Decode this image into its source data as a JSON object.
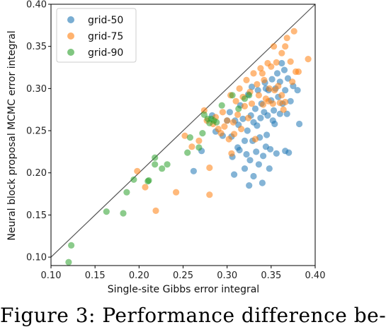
{
  "caption": "Figure 3:  Performance difference be-",
  "chart_data": {
    "type": "scatter",
    "xlabel": "Single-site Gibbs error integral",
    "ylabel": "Neural block proposal MCMC error integral",
    "xlim": [
      0.1,
      0.4
    ],
    "ylim": [
      0.09,
      0.4
    ],
    "x_ticks": [
      "0.10",
      "0.15",
      "0.20",
      "0.25",
      "0.30",
      "0.35",
      "0.40"
    ],
    "y_ticks": [
      "0.10",
      "0.15",
      "0.20",
      "0.25",
      "0.30",
      "0.35",
      "0.40"
    ],
    "reference_line": "y = x",
    "legend_position": "top-left",
    "colors": {
      "grid-50": "#1f77b4",
      "grid-75": "#ff7f0e",
      "grid-90": "#2ca02c",
      "diagonal": "#555555"
    },
    "series": [
      {
        "name": "grid-50",
        "points": [
          [
            0.262,
            0.202
          ],
          [
            0.271,
            0.226
          ],
          [
            0.283,
            0.268
          ],
          [
            0.287,
            0.249
          ],
          [
            0.295,
            0.244
          ],
          [
            0.3,
            0.262
          ],
          [
            0.303,
            0.272
          ],
          [
            0.305,
            0.243
          ],
          [
            0.306,
            0.219
          ],
          [
            0.308,
            0.198
          ],
          [
            0.312,
            0.23
          ],
          [
            0.313,
            0.257
          ],
          [
            0.315,
            0.28
          ],
          [
            0.318,
            0.264
          ],
          [
            0.32,
            0.238
          ],
          [
            0.32,
            0.205
          ],
          [
            0.322,
            0.222
          ],
          [
            0.323,
            0.25
          ],
          [
            0.324,
            0.293
          ],
          [
            0.325,
            0.185
          ],
          [
            0.326,
            0.215
          ],
          [
            0.327,
            0.268
          ],
          [
            0.328,
            0.302
          ],
          [
            0.329,
            0.238
          ],
          [
            0.33,
            0.26
          ],
          [
            0.33,
            0.196
          ],
          [
            0.332,
            0.276
          ],
          [
            0.333,
            0.225
          ],
          [
            0.334,
            0.256
          ],
          [
            0.335,
            0.298
          ],
          [
            0.336,
            0.21
          ],
          [
            0.337,
            0.242
          ],
          [
            0.338,
            0.265
          ],
          [
            0.339,
            0.282
          ],
          [
            0.34,
            0.188
          ],
          [
            0.341,
            0.22
          ],
          [
            0.342,
            0.272
          ],
          [
            0.343,
            0.307
          ],
          [
            0.344,
            0.231
          ],
          [
            0.345,
            0.245
          ],
          [
            0.346,
            0.268
          ],
          [
            0.347,
            0.298
          ],
          [
            0.348,
            0.205
          ],
          [
            0.349,
            0.228
          ],
          [
            0.35,
            0.286
          ],
          [
            0.351,
            0.311
          ],
          [
            0.352,
            0.262
          ],
          [
            0.353,
            0.274
          ],
          [
            0.355,
            0.3
          ],
          [
            0.356,
            0.223
          ],
          [
            0.357,
            0.318
          ],
          [
            0.358,
            0.29
          ],
          [
            0.36,
            0.308
          ],
          [
            0.362,
            0.33
          ],
          [
            0.363,
            0.282
          ],
          [
            0.365,
            0.322
          ],
          [
            0.366,
            0.298
          ],
          [
            0.368,
            0.27
          ],
          [
            0.369,
            0.312
          ],
          [
            0.37,
            0.224
          ],
          [
            0.372,
            0.285
          ],
          [
            0.375,
            0.303
          ],
          [
            0.38,
            0.298
          ],
          [
            0.382,
            0.258
          ],
          [
            0.314,
            0.227
          ],
          [
            0.309,
            0.262
          ],
          [
            0.344,
            0.3
          ],
          [
            0.354,
            0.258
          ],
          [
            0.36,
            0.27
          ],
          [
            0.366,
            0.226
          ]
        ]
      },
      {
        "name": "grid-75",
        "points": [
          [
            0.198,
            0.202
          ],
          [
            0.207,
            0.183
          ],
          [
            0.219,
            0.155
          ],
          [
            0.242,
            0.177
          ],
          [
            0.252,
            0.244
          ],
          [
            0.26,
            0.231
          ],
          [
            0.268,
            0.238
          ],
          [
            0.274,
            0.274
          ],
          [
            0.277,
            0.262
          ],
          [
            0.28,
            0.206
          ],
          [
            0.28,
            0.174
          ],
          [
            0.284,
            0.258
          ],
          [
            0.287,
            0.266
          ],
          [
            0.29,
            0.252
          ],
          [
            0.293,
            0.247
          ],
          [
            0.295,
            0.272
          ],
          [
            0.297,
            0.255
          ],
          [
            0.3,
            0.262
          ],
          [
            0.302,
            0.24
          ],
          [
            0.304,
            0.292
          ],
          [
            0.305,
            0.223
          ],
          [
            0.307,
            0.26
          ],
          [
            0.308,
            0.246
          ],
          [
            0.31,
            0.285
          ],
          [
            0.312,
            0.269
          ],
          [
            0.314,
            0.3
          ],
          [
            0.316,
            0.252
          ],
          [
            0.318,
            0.29
          ],
          [
            0.32,
            0.279
          ],
          [
            0.322,
            0.31
          ],
          [
            0.324,
            0.265
          ],
          [
            0.326,
            0.296
          ],
          [
            0.328,
            0.282
          ],
          [
            0.33,
            0.318
          ],
          [
            0.332,
            0.24
          ],
          [
            0.334,
            0.305
          ],
          [
            0.336,
            0.292
          ],
          [
            0.338,
            0.324
          ],
          [
            0.34,
            0.318
          ],
          [
            0.342,
            0.31
          ],
          [
            0.344,
            0.288
          ],
          [
            0.346,
            0.33
          ],
          [
            0.348,
            0.3
          ],
          [
            0.35,
            0.326
          ],
          [
            0.352,
            0.282
          ],
          [
            0.354,
            0.298
          ],
          [
            0.356,
            0.331
          ],
          [
            0.358,
            0.303
          ],
          [
            0.36,
            0.283
          ],
          [
            0.362,
            0.342
          ],
          [
            0.364,
            0.275
          ],
          [
            0.366,
            0.35
          ],
          [
            0.368,
            0.36
          ],
          [
            0.372,
            0.332
          ],
          [
            0.374,
            0.308
          ],
          [
            0.376,
            0.368
          ],
          [
            0.378,
            0.32
          ],
          [
            0.362,
            0.292
          ],
          [
            0.353,
            0.35
          ],
          [
            0.392,
            0.335
          ],
          [
            0.381,
            0.32
          ],
          [
            0.366,
            0.284
          ],
          [
            0.341,
            0.281
          ],
          [
            0.347,
            0.285
          ]
        ]
      },
      {
        "name": "grid-90",
        "points": [
          [
            0.12,
            0.094
          ],
          [
            0.123,
            0.114
          ],
          [
            0.163,
            0.154
          ],
          [
            0.182,
            0.152
          ],
          [
            0.186,
            0.177
          ],
          [
            0.194,
            0.192
          ],
          [
            0.21,
            0.19
          ],
          [
            0.211,
            0.191
          ],
          [
            0.218,
            0.21
          ],
          [
            0.218,
            0.218
          ],
          [
            0.226,
            0.205
          ],
          [
            0.232,
            0.21
          ],
          [
            0.255,
            0.224
          ],
          [
            0.258,
            0.242
          ],
          [
            0.268,
            0.23
          ],
          [
            0.272,
            0.247
          ],
          [
            0.274,
            0.269
          ],
          [
            0.278,
            0.264
          ],
          [
            0.28,
            0.259
          ],
          [
            0.282,
            0.264
          ],
          [
            0.285,
            0.262
          ],
          [
            0.288,
            0.26
          ],
          [
            0.294,
            0.28
          ],
          [
            0.306,
            0.292
          ],
          [
            0.313,
            0.276
          ],
          [
            0.32,
            0.288
          ],
          [
            0.325,
            0.292
          ]
        ]
      }
    ]
  }
}
